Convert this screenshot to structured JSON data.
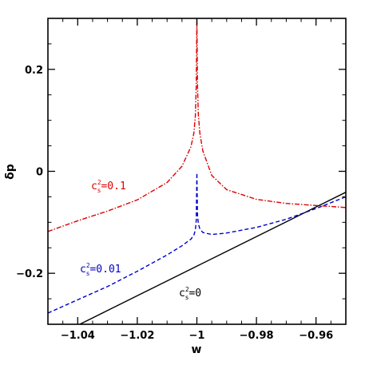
{
  "chart_data": {
    "type": "line",
    "title": "",
    "xlabel": "w",
    "ylabel": "δp",
    "xlim": [
      -1.05,
      -0.95
    ],
    "ylim": [
      -0.3,
      0.3
    ],
    "x_ticks": [
      -1.04,
      -1.02,
      -1,
      -0.98,
      -0.96
    ],
    "x_tick_labels": [
      "−1.04",
      "−1.02",
      "−1",
      "−0.98",
      "−0.96"
    ],
    "y_ticks": [
      -0.2,
      0,
      0.2
    ],
    "y_tick_labels": [
      "−0.2",
      "0",
      "0.2"
    ],
    "grid": false,
    "legend": "none (inline curve labels)",
    "series": [
      {
        "name": "c_s^2=0",
        "label_base": "c",
        "label_sub": "s",
        "label_sup": "2",
        "label_value": "=0",
        "color": "#000000",
        "style": "solid",
        "x": [
          -1.05,
          -1.04,
          -1.03,
          -1.02,
          -1.01,
          -1.0,
          -0.99,
          -0.98,
          -0.97,
          -0.96,
          -0.95
        ],
        "y": [
          -0.331,
          -0.302,
          -0.273,
          -0.244,
          -0.215,
          -0.186,
          -0.157,
          -0.128,
          -0.099,
          -0.07,
          -0.041
        ]
      },
      {
        "name": "c_s^2=0.01",
        "label_base": "c",
        "label_sub": "s",
        "label_sup": "2",
        "label_value": "=0.01",
        "color": "#0000cc",
        "style": "dashed",
        "x": [
          -1.05,
          -1.04,
          -1.03,
          -1.02,
          -1.01,
          -1.005,
          -1.002,
          -1.001,
          -1.0005,
          -1.0002,
          -1.0,
          -0.9998,
          -0.9995,
          -0.999,
          -0.998,
          -0.995,
          -0.99,
          -0.98,
          -0.97,
          -0.96,
          -0.95
        ],
        "y": [
          -0.278,
          -0.252,
          -0.226,
          -0.196,
          -0.164,
          -0.146,
          -0.133,
          -0.125,
          -0.115,
          -0.095,
          -0.003,
          -0.085,
          -0.103,
          -0.113,
          -0.12,
          -0.124,
          -0.121,
          -0.11,
          -0.094,
          -0.073,
          -0.05
        ]
      },
      {
        "name": "c_s^2=0.1",
        "label_base": "c",
        "label_sub": "s",
        "label_sup": "2",
        "label_value": "=0.1",
        "color": "#dd0000",
        "style": "dash-dot",
        "x": [
          -1.05,
          -1.04,
          -1.03,
          -1.02,
          -1.01,
          -1.005,
          -1.002,
          -1.001,
          -1.0005,
          -1.0002,
          -1.0,
          -0.9998,
          -0.9995,
          -0.999,
          -0.998,
          -0.995,
          -0.99,
          -0.98,
          -0.97,
          -0.96,
          -0.95
        ],
        "y": [
          -0.118,
          -0.097,
          -0.078,
          -0.056,
          -0.022,
          0.01,
          0.048,
          0.075,
          0.11,
          0.17,
          0.3,
          0.17,
          0.11,
          0.075,
          0.04,
          -0.008,
          -0.036,
          -0.055,
          -0.063,
          -0.067,
          -0.071
        ]
      }
    ]
  }
}
